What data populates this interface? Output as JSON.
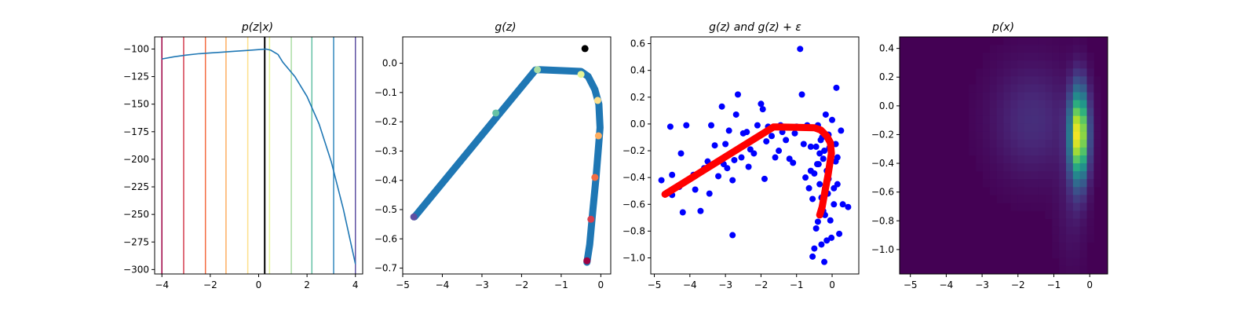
{
  "chart_data": [
    {
      "type": "line",
      "title": "p(z|x)",
      "xlim": [
        -4.3,
        4.3
      ],
      "ylim": [
        -304,
        -89
      ],
      "xticks": [
        -4,
        -2,
        0,
        2,
        4
      ],
      "xtick_labels": [
        "−4",
        "−2",
        "0",
        "2",
        "4"
      ],
      "yticks": [
        -100,
        -125,
        -150,
        -175,
        -200,
        -225,
        -250,
        -275,
        -300
      ],
      "ytick_labels": [
        "−100",
        "−125",
        "−150",
        "−175",
        "−200",
        "−225",
        "−250",
        "−275",
        "−300"
      ],
      "curve_color": "#1f77b4",
      "curve": {
        "x": [
          -4.0,
          -3.5,
          -3.0,
          -2.5,
          -2.0,
          -1.5,
          -1.0,
          -0.5,
          0.0,
          0.3,
          0.5,
          0.8,
          1.0,
          1.5,
          2.0,
          2.5,
          3.0,
          3.5,
          4.0
        ],
        "y": [
          -109,
          -107,
          -105.5,
          -104.3,
          -103.5,
          -102.8,
          -102,
          -101.3,
          -100.5,
          -100,
          -101,
          -105,
          -112,
          -125,
          -143,
          -168,
          -202,
          -245,
          -295
        ]
      },
      "vlines": [
        {
          "x": -4.0,
          "color": "#9e0142"
        },
        {
          "x": -3.1,
          "color": "#d53e4f"
        },
        {
          "x": -2.2,
          "color": "#f46d43"
        },
        {
          "x": -1.35,
          "color": "#fdae61"
        },
        {
          "x": -0.45,
          "color": "#fee08b"
        },
        {
          "x": 0.25,
          "color": "#000000"
        },
        {
          "x": 0.45,
          "color": "#e6f598"
        },
        {
          "x": 1.35,
          "color": "#abdda4"
        },
        {
          "x": 2.2,
          "color": "#66c2a5"
        },
        {
          "x": 3.1,
          "color": "#3288bd"
        },
        {
          "x": 4.0,
          "color": "#5e4fa2"
        }
      ]
    },
    {
      "type": "scatter",
      "title": "g(z)",
      "xlim": [
        -5.0,
        0.25
      ],
      "ylim": [
        -0.72,
        0.09
      ],
      "xticks": [
        -5,
        -4,
        -3,
        -2,
        -1,
        0
      ],
      "xtick_labels": [
        "−5",
        "−4",
        "−3",
        "−2",
        "−1",
        "0"
      ],
      "yticks": [
        0.0,
        -0.1,
        -0.2,
        -0.3,
        -0.4,
        -0.5,
        -0.6,
        -0.7
      ],
      "ytick_labels": [
        "0.0",
        "−0.1",
        "−0.2",
        "−0.3",
        "−0.4",
        "−0.5",
        "−0.6",
        "−0.7"
      ],
      "path_color": "#1f77b4",
      "path": {
        "x": [
          -4.7,
          -1.65,
          -1.55,
          -0.5,
          -0.32,
          -0.15,
          -0.05,
          -0.02,
          -0.12,
          -0.2,
          -0.28,
          -0.35
        ],
        "y": [
          -0.525,
          -0.023,
          -0.022,
          -0.028,
          -0.045,
          -0.09,
          -0.14,
          -0.22,
          -0.39,
          -0.5,
          -0.62,
          -0.68
        ]
      },
      "highlight_points": [
        {
          "x": -0.4,
          "y": 0.05,
          "color": "#000000"
        },
        {
          "x": -4.72,
          "y": -0.525,
          "color": "#5e4fa2"
        },
        {
          "x": -2.65,
          "y": -0.17,
          "color": "#66c2a5"
        },
        {
          "x": -1.6,
          "y": -0.022,
          "color": "#abdda4"
        },
        {
          "x": -0.5,
          "y": -0.038,
          "color": "#e6f598"
        },
        {
          "x": -0.08,
          "y": -0.127,
          "color": "#fee08b"
        },
        {
          "x": -0.06,
          "y": -0.248,
          "color": "#fdae61"
        },
        {
          "x": -0.15,
          "y": -0.39,
          "color": "#f46d43"
        },
        {
          "x": -0.25,
          "y": -0.533,
          "color": "#d53e4f"
        },
        {
          "x": -0.35,
          "y": -0.675,
          "color": "#9e0142"
        }
      ]
    },
    {
      "type": "scatter",
      "title": "g(z) and g(z) + ε",
      "xlim": [
        -5.1,
        0.75
      ],
      "ylim": [
        -1.12,
        0.65
      ],
      "xticks": [
        -5,
        -4,
        -3,
        -2,
        -1,
        0
      ],
      "xtick_labels": [
        "−5",
        "−4",
        "−3",
        "−2",
        "−1",
        "0"
      ],
      "yticks": [
        0.6,
        0.4,
        0.2,
        0.0,
        -0.2,
        -0.4,
        -0.6,
        -0.8,
        -1.0
      ],
      "ytick_labels": [
        "0.6",
        "0.4",
        "0.2",
        "0.0",
        "−0.2",
        "−0.4",
        "−0.6",
        "−0.8",
        "−1.0"
      ],
      "noisy_color": "#0000ff",
      "mean_color": "#ff0000",
      "mean_curve": {
        "x": [
          -4.7,
          -1.65,
          -1.55,
          -0.5,
          -0.32,
          -0.15,
          -0.05,
          -0.02,
          -0.12,
          -0.2,
          -0.28,
          -0.35
        ],
        "y": [
          -0.525,
          -0.023,
          -0.022,
          -0.028,
          -0.045,
          -0.09,
          -0.14,
          -0.22,
          -0.39,
          -0.5,
          -0.62,
          -0.68
        ]
      },
      "noisy_points": {
        "x": [
          -4.8,
          -4.55,
          -4.5,
          -4.3,
          -4.25,
          -4.2,
          -4.1,
          -3.9,
          -3.85,
          -3.7,
          -3.6,
          -3.5,
          -3.45,
          -3.4,
          -3.3,
          -3.2,
          -3.1,
          -3.0,
          -2.95,
          -2.9,
          -2.8,
          -2.75,
          -2.7,
          -2.65,
          -2.55,
          -2.5,
          -2.4,
          -2.35,
          -2.3,
          -2.2,
          -2.1,
          -2.0,
          -1.95,
          -1.9,
          -1.85,
          -1.8,
          -1.7,
          -1.6,
          -1.5,
          -1.45,
          -1.4,
          -1.3,
          -1.2,
          -1.1,
          -1.05,
          -1.0,
          -0.9,
          -0.85,
          -0.8,
          -0.75,
          -0.7,
          -0.65,
          -0.6,
          -0.55,
          -0.5,
          -0.45,
          -0.4,
          -0.38,
          -0.35,
          -0.3,
          -0.28,
          -0.25,
          -0.22,
          -0.2,
          -0.18,
          -0.15,
          -0.12,
          -0.1,
          -0.08,
          -0.05,
          -0.02,
          0.0,
          0.05,
          0.1,
          0.12,
          0.15,
          0.2,
          0.25,
          0.3,
          0.45,
          -0.6,
          -0.5,
          -0.4,
          -0.3,
          -0.2,
          -0.1,
          0.1,
          -0.45,
          -0.35,
          -0.25,
          -0.15,
          0.05,
          -0.55,
          -0.42,
          -0.32,
          -0.22,
          0.15,
          -2.8,
          -4.5,
          -3.05
        ],
        "y": [
          -0.42,
          -0.02,
          -0.38,
          -0.47,
          -0.22,
          -0.66,
          -0.01,
          -0.38,
          -0.49,
          -0.65,
          -0.33,
          -0.28,
          -0.52,
          -0.01,
          -0.16,
          -0.39,
          0.13,
          -0.15,
          -0.33,
          -0.05,
          -0.42,
          -0.27,
          0.07,
          0.22,
          -0.25,
          -0.07,
          -0.06,
          -0.32,
          -0.19,
          -0.22,
          -0.01,
          0.15,
          0.11,
          -0.41,
          -0.13,
          -0.02,
          -0.09,
          -0.25,
          -0.2,
          -0.01,
          -0.06,
          -0.12,
          -0.26,
          -0.29,
          -0.07,
          -0.02,
          0.56,
          0.22,
          -0.15,
          -0.4,
          -0.01,
          -0.48,
          -0.17,
          -0.56,
          -0.37,
          -0.78,
          -0.01,
          -0.3,
          -0.45,
          -0.9,
          -0.1,
          -0.65,
          -0.2,
          -0.48,
          0.07,
          -0.35,
          -0.52,
          -0.08,
          -0.18,
          -0.72,
          -0.85,
          0.03,
          -0.6,
          -0.28,
          0.27,
          -0.25,
          -0.82,
          -0.05,
          -0.6,
          -0.62,
          -0.35,
          -0.93,
          -0.73,
          -0.55,
          -0.68,
          -0.41,
          -0.15,
          -0.17,
          -0.22,
          -0.26,
          -0.87,
          -0.48,
          -0.99,
          -0.3,
          -0.12,
          -1.03,
          -0.45,
          -0.83,
          -0.53,
          -0.3
        ]
      }
    },
    {
      "type": "heatmap",
      "title": "p(x)",
      "xlim": [
        -5.3,
        0.5
      ],
      "ylim": [
        -1.17,
        0.48
      ],
      "xticks": [
        -5,
        -4,
        -3,
        -2,
        -1,
        0
      ],
      "xtick_labels": [
        "−5",
        "−4",
        "−3",
        "−2",
        "−1",
        "0"
      ],
      "yticks": [
        0.4,
        0.2,
        0.0,
        -0.2,
        -0.4,
        -0.6,
        -0.8,
        -1.0
      ],
      "ytick_labels": [
        "0.4",
        "0.2",
        "0.0",
        "−0.2",
        "−0.4",
        "−0.6",
        "−0.8",
        "−1.0"
      ],
      "grid_size": [
        30,
        30
      ],
      "colormap": "viridis",
      "background_color": "#440154"
    }
  ]
}
